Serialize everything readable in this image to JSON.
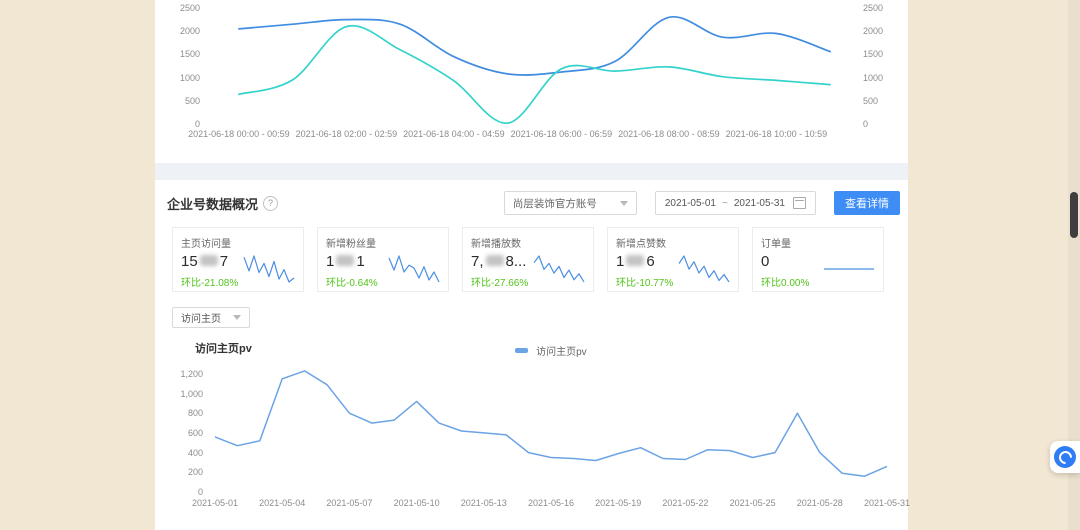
{
  "accent": {
    "primary_blue": "#3d8df5",
    "green": "#52c41a",
    "hourly_blue": "#3f8ce0",
    "hourly_cyan": "#33d3cb",
    "daily_blue": "#6ba3e5",
    "spark_blue": "#4a8fe2"
  },
  "overview": {
    "title": "企业号数据概况",
    "info_icon": "?",
    "account_select": "尚层装饰官方账号",
    "date_start": "2021-05-01",
    "date_separator": "~",
    "date_end": "2021-05-31",
    "detail_button": "查看详情",
    "metric_select": "访问主页",
    "chart_title": "访问主页pv",
    "legend_label": "访问主页pv",
    "cards": [
      {
        "label": "主页访问量",
        "value_prefix": "15",
        "value_suffix": "7",
        "blurred": true,
        "change": "环比-21.08%",
        "spark": {
          "values": [
            85,
            52,
            88,
            48,
            70,
            38,
            75,
            32,
            55,
            25,
            35
          ]
        }
      },
      {
        "label": "新增粉丝量",
        "value_prefix": "1",
        "value_suffix": "1",
        "blurred": true,
        "change": "环比-0.64%",
        "spark": {
          "values": [
            80,
            50,
            85,
            45,
            62,
            55,
            30,
            58,
            25,
            45,
            20
          ]
        }
      },
      {
        "label": "新增播放数",
        "value_prefix": "7,",
        "value_suffix": "8...",
        "blurred": true,
        "change": "环比-27.66%",
        "spark": {
          "values": [
            70,
            88,
            52,
            68,
            42,
            60,
            30,
            50,
            24,
            40,
            18
          ]
        }
      },
      {
        "label": "新增点赞数",
        "value_prefix": "1",
        "value_suffix": "6",
        "blurred": true,
        "change": "环比-10.77%",
        "spark": {
          "values": [
            65,
            85,
            50,
            70,
            40,
            58,
            28,
            46,
            20,
            36,
            16
          ]
        }
      },
      {
        "label": "订单量",
        "value_prefix": "0",
        "value_suffix": "",
        "blurred": false,
        "change": "环比0.00%",
        "spark": {
          "values": [
            5,
            5
          ],
          "ylim": [
            0,
            10
          ]
        }
      }
    ]
  },
  "chart_data": [
    {
      "id": "hourly",
      "type": "line",
      "n_points": 12,
      "boundary_gap": true,
      "smooth": true,
      "dual_axis": true,
      "comma": false,
      "ylim": [
        0,
        2500
      ],
      "yticks": [
        0,
        500,
        1000,
        1500,
        2000,
        2500
      ],
      "x_labels": [
        "2021-06-18 00:00 - 00:59",
        "2021-06-18 02:00 - 02:59",
        "2021-06-18 04:00 - 04:59",
        "2021-06-18 06:00 - 06:59",
        "2021-06-18 08:00 - 08:59",
        "2021-06-18 10:00 - 10:59"
      ],
      "x_label_indices": [
        0,
        2,
        4,
        6,
        8,
        10
      ],
      "series": [
        {
          "name": "series-blue",
          "color": "#3f8ce0",
          "values": [
            2050,
            2150,
            2250,
            2150,
            1450,
            1080,
            1120,
            1350,
            2300,
            1870,
            1950,
            1560
          ]
        },
        {
          "name": "series-cyan",
          "color": "#33d3cb",
          "values": [
            640,
            950,
            2100,
            1600,
            930,
            20,
            1190,
            1140,
            1230,
            1020,
            940,
            850
          ]
        }
      ]
    },
    {
      "id": "daily",
      "type": "line",
      "title": "访问主页pv",
      "legend": "访问主页pv",
      "n_points": 31,
      "boundary_gap": false,
      "smooth": false,
      "dual_axis": false,
      "comma": true,
      "ylim": [
        0,
        1300
      ],
      "yticks": [
        0,
        200,
        400,
        600,
        800,
        1000,
        1200
      ],
      "x_labels": [
        "2021-05-01",
        "2021-05-04",
        "2021-05-07",
        "2021-05-10",
        "2021-05-13",
        "2021-05-16",
        "2021-05-19",
        "2021-05-22",
        "2021-05-25",
        "2021-05-28",
        "2021-05-31"
      ],
      "x_label_indices": [
        0,
        3,
        6,
        9,
        12,
        15,
        18,
        21,
        24,
        27,
        30
      ],
      "series": [
        {
          "name": "访问主页pv",
          "color": "#6ba3e5",
          "values": [
            560,
            470,
            520,
            1150,
            1230,
            1090,
            800,
            700,
            730,
            920,
            700,
            620,
            600,
            580,
            400,
            350,
            340,
            320,
            390,
            450,
            340,
            330,
            430,
            420,
            350,
            400,
            800,
            400,
            190,
            160,
            260
          ]
        }
      ]
    }
  ]
}
